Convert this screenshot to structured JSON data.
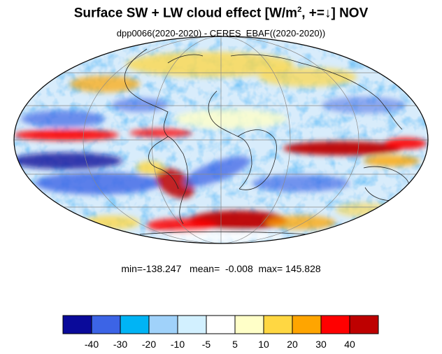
{
  "title": {
    "main": "Surface SW + LW cloud effect [W/m",
    "sup": "2",
    "rest": ", +=↓]  NOV"
  },
  "subtitle": "dpp0066(2020-2020) - CERES_EBAF((2020-2020))",
  "stats": {
    "min_label": "min=",
    "min": "-138.247",
    "mean_label": "mean=",
    "mean": "-0.008",
    "max_label": "max=",
    "max": "145.828"
  },
  "map": {
    "projection": "mollweide",
    "field": "difference",
    "features": [
      {
        "region": "tropical-pacific-east",
        "sign": "positive"
      },
      {
        "region": "tropical-indian-ocean",
        "sign": "positive"
      },
      {
        "region": "southern-ocean-south-of-africa",
        "sign": "positive"
      },
      {
        "region": "south-pacific-subtropics",
        "sign": "negative"
      },
      {
        "region": "south-atlantic-band",
        "sign": "negative"
      },
      {
        "region": "northern-mid-latitudes",
        "sign": "mixed"
      }
    ]
  },
  "colorbar": {
    "colors": [
      "#0a0a9a",
      "#3c64e6",
      "#00b4f5",
      "#a0d2fa",
      "#d2f0ff",
      "#ffffff",
      "#ffffc8",
      "#ffd742",
      "#ffa500",
      "#ff0000",
      "#be0000"
    ],
    "tick_labels": [
      "-40",
      "-30",
      "-20",
      "-10",
      "-5",
      "5",
      "10",
      "20",
      "30",
      "40"
    ],
    "tick_values": [
      -40,
      -30,
      -20,
      -10,
      -5,
      5,
      10,
      20,
      30,
      40
    ]
  }
}
